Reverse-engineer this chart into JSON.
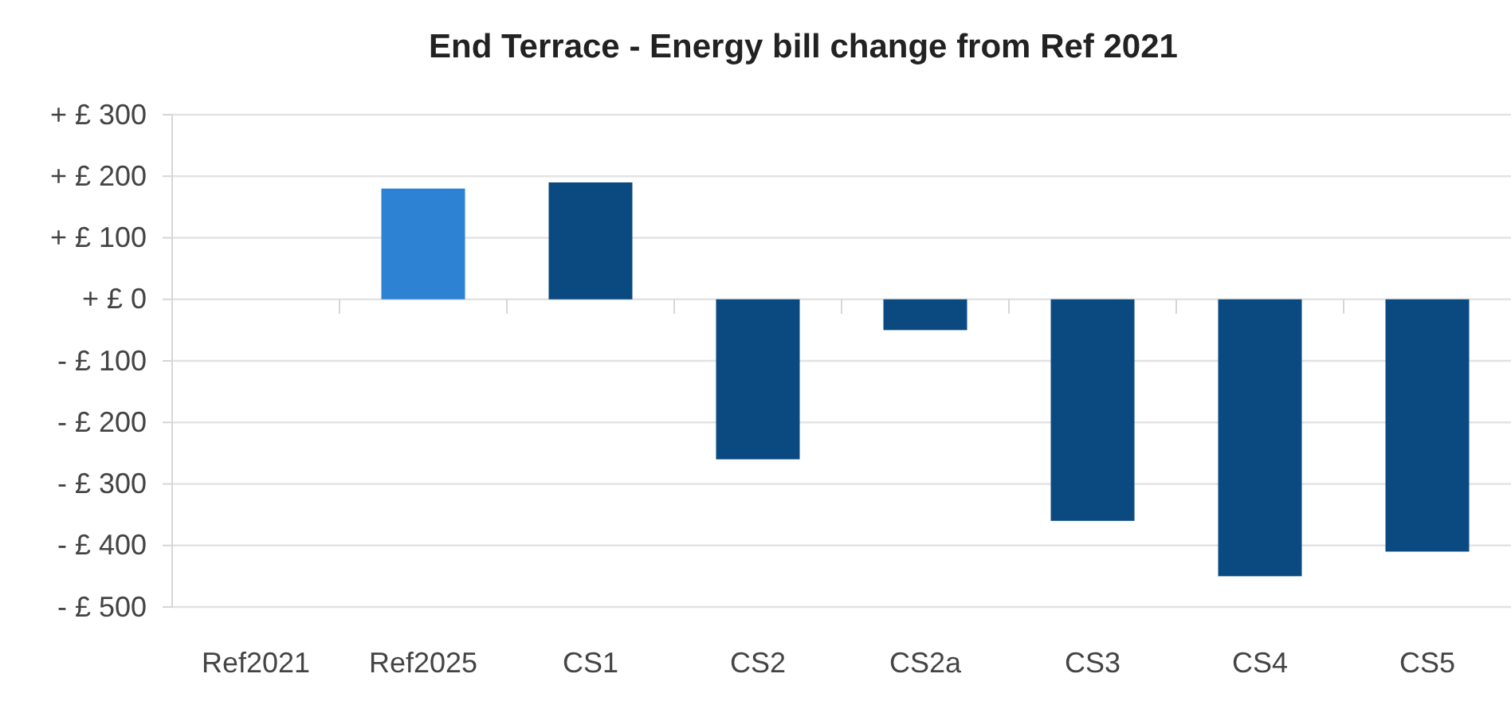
{
  "chart_data": {
    "type": "bar",
    "title": "End Terrace - Energy bill change from Ref 2021",
    "categories": [
      "Ref2021",
      "Ref2025",
      "CS1",
      "CS2",
      "CS2a",
      "CS3",
      "CS4",
      "CS5"
    ],
    "values": [
      0,
      180,
      190,
      -260,
      -50,
      -360,
      -450,
      -410
    ],
    "colors": [
      "#0b4a80",
      "#2e82d4",
      "#0b4a80",
      "#0b4a80",
      "#0b4a80",
      "#0b4a80",
      "#0b4a80",
      "#0b4a80"
    ],
    "ylim": [
      -500,
      300
    ],
    "yticks": [
      {
        "value": -500,
        "label": "- £ 500"
      },
      {
        "value": -400,
        "label": "- £ 400"
      },
      {
        "value": -300,
        "label": "- £ 300"
      },
      {
        "value": -200,
        "label": "- £ 200"
      },
      {
        "value": -100,
        "label": "- £ 100"
      },
      {
        "value": 0,
        "label": "+ £ 0"
      },
      {
        "value": 100,
        "label": "+ £ 100"
      },
      {
        "value": 200,
        "label": "+ £ 200"
      },
      {
        "value": 300,
        "label": "+ £ 300"
      }
    ],
    "grid": "y"
  }
}
